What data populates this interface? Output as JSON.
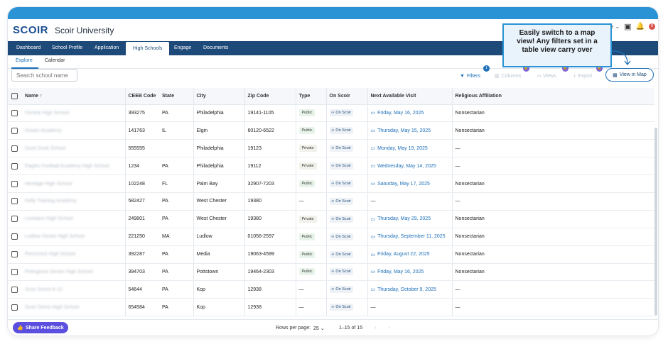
{
  "app": {
    "logo": "SCOIR",
    "title": "Scoir University",
    "user_fragment": "ome",
    "notification_count": "0"
  },
  "nav": {
    "tabs": [
      "Dashboard",
      "School Profile",
      "Application",
      "High Schools",
      "Engage",
      "Documents"
    ],
    "active": "High Schools"
  },
  "subtabs": {
    "items": [
      "Explore",
      "Calendar"
    ],
    "active": "Explore"
  },
  "search": {
    "placeholder": "Search school name"
  },
  "toolbar": {
    "filters": "Filters",
    "filters_count": "1",
    "columns": "Columns",
    "views": "Views",
    "export": "Export",
    "view_map": "View in Map"
  },
  "callout": {
    "text": "Easily switch to a map view! Any filters set in a table view carry over"
  },
  "table": {
    "headers": {
      "name": "Name",
      "ceeb": "CEEB Code",
      "state": "State",
      "city": "City",
      "zip": "Zip Code",
      "type": "Type",
      "on_scoir": "On Scoir",
      "visit": "Next Available Visit",
      "religious": "Religious Affiliation"
    },
    "rows": [
      {
        "name": "Central High School",
        "ceeb": "393275",
        "state": "PA",
        "city": "Philadelphia",
        "zip": "19141-1105",
        "type": "Public",
        "on_scoir": "On Scoir",
        "visit": "Friday, May 16, 2025",
        "religious": "Nonsectarian"
      },
      {
        "name": "Dream Academy",
        "ceeb": "141763",
        "state": "IL",
        "city": "Elgin",
        "zip": "60120-6522",
        "type": "Public",
        "on_scoir": "On Scoir",
        "visit": "Thursday, May 15, 2025",
        "religious": "Nonsectarian"
      },
      {
        "name": "Duck Duck School",
        "ceeb": "555555",
        "state": "",
        "city": "Philadelphia",
        "zip": "19123",
        "type": "Private",
        "on_scoir": "On Scoir",
        "visit": "Monday, May 19, 2025",
        "religious": "—"
      },
      {
        "name": "Eagles Football Academy High School",
        "ceeb": "1234",
        "state": "PA",
        "city": "Philadelphia",
        "zip": "19112",
        "type": "Private",
        "on_scoir": "On Scoir",
        "visit": "Wednesday, May 14, 2025",
        "religious": "—"
      },
      {
        "name": "Heritage High School",
        "ceeb": "102248",
        "state": "FL",
        "city": "Palm Bay",
        "zip": "32907-7203",
        "type": "Public",
        "on_scoir": "On Scoir",
        "visit": "Saturday, May 17, 2025",
        "religious": "Nonsectarian"
      },
      {
        "name": "Kelly Training Academy",
        "ceeb": "582427",
        "state": "PA",
        "city": "West Chester",
        "zip": "19380",
        "type": "—",
        "on_scoir": "On Scoir",
        "visit": "—",
        "religious": "—"
      },
      {
        "name": "Lovelace High School",
        "ceeb": "249801",
        "state": "PA",
        "city": "West Chester",
        "zip": "19380",
        "type": "Private",
        "on_scoir": "On Scoir",
        "visit": "Thursday, May 29, 2025",
        "religious": "Nonsectarian"
      },
      {
        "name": "Ludlow Senior High School",
        "ceeb": "221250",
        "state": "MA",
        "city": "Ludlow",
        "zip": "01056-2597",
        "type": "Public",
        "on_scoir": "On Scoir",
        "visit": "Thursday, September 11, 2025",
        "religious": "Nonsectarian"
      },
      {
        "name": "Penncrest High School",
        "ceeb": "392287",
        "state": "PA",
        "city": "Media",
        "zip": "19063-4599",
        "type": "Public",
        "on_scoir": "On Scoir",
        "visit": "Friday, August 22, 2025",
        "religious": "Nonsectarian"
      },
      {
        "name": "Pottsgrove Senior High School",
        "ceeb": "394703",
        "state": "PA",
        "city": "Pottstown",
        "zip": "19464-2303",
        "type": "Public",
        "on_scoir": "On Scoir",
        "visit": "Friday, May 16, 2025",
        "religious": "Nonsectarian"
      },
      {
        "name": "Scoir Demo K-12",
        "ceeb": "54644",
        "state": "PA",
        "city": "Kop",
        "zip": "12938",
        "type": "—",
        "on_scoir": "On Scoir",
        "visit": "Thursday, October 9, 2025",
        "religious": "—"
      },
      {
        "name": "Scoir Demo High School",
        "ceeb": "654584",
        "state": "PA",
        "city": "Kop",
        "zip": "12938",
        "type": "—",
        "on_scoir": "On Scoir",
        "visit": "—",
        "religious": "—"
      }
    ]
  },
  "footer": {
    "share": "Share Feedback",
    "rows_per_page_label": "Rows per page:",
    "rows_per_page": "25",
    "range": "1–15 of 15"
  },
  "colors": {
    "brand": "#1d4a79",
    "accent": "#2a93d5",
    "link": "#1d6fb8",
    "feedback": "#5b4fe0"
  }
}
